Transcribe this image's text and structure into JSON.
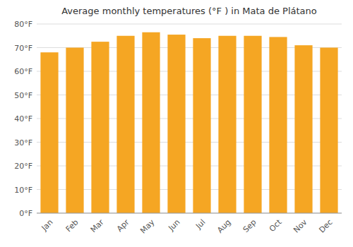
{
  "chart_data": {
    "type": "bar",
    "title": "Average monthly temperatures (°F ) in Mata de Plátano",
    "categories": [
      "Jan",
      "Feb",
      "Mar",
      "Apr",
      "May",
      "Jun",
      "Jul",
      "Aug",
      "Sep",
      "Oct",
      "Nov",
      "Dec"
    ],
    "values": [
      68,
      70,
      72.5,
      75,
      76.5,
      75.5,
      74,
      75,
      75,
      74.5,
      71,
      70
    ],
    "color": "#f5a623",
    "ylim": [
      0,
      80
    ],
    "yticks": [
      {
        "value": 0,
        "label": "0°F"
      },
      {
        "value": 10,
        "label": "10°F"
      },
      {
        "value": 20,
        "label": "20°F"
      },
      {
        "value": 30,
        "label": "30°F"
      },
      {
        "value": 40,
        "label": "40°F"
      },
      {
        "value": 50,
        "label": "50°F"
      },
      {
        "value": 60,
        "label": "60°F"
      },
      {
        "value": 70,
        "label": "70°F"
      },
      {
        "value": 80,
        "label": "80°F"
      }
    ],
    "grid": true
  }
}
